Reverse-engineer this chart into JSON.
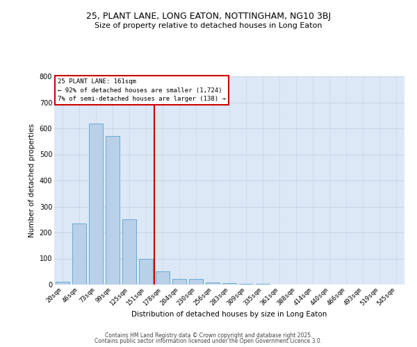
{
  "title1": "25, PLANT LANE, LONG EATON, NOTTINGHAM, NG10 3BJ",
  "title2": "Size of property relative to detached houses in Long Eaton",
  "xlabel": "Distribution of detached houses by size in Long Eaton",
  "ylabel": "Number of detached properties",
  "bar_labels": [
    "20sqm",
    "46sqm",
    "73sqm",
    "99sqm",
    "125sqm",
    "151sqm",
    "178sqm",
    "204sqm",
    "230sqm",
    "256sqm",
    "283sqm",
    "309sqm",
    "335sqm",
    "361sqm",
    "388sqm",
    "414sqm",
    "440sqm",
    "466sqm",
    "493sqm",
    "519sqm",
    "545sqm"
  ],
  "bar_values": [
    10,
    235,
    620,
    570,
    250,
    100,
    50,
    22,
    22,
    8,
    5,
    2,
    2,
    0,
    0,
    0,
    0,
    0,
    0,
    0,
    0
  ],
  "bar_color": "#b8d0e8",
  "bar_edge_color": "#6aaad4",
  "grid_color": "#c8d4e8",
  "background_color": "#dce8f5",
  "vline_color": "#cc0000",
  "annotation_title": "25 PLANT LANE: 161sqm",
  "annotation_line1": "← 92% of detached houses are smaller (1,724)",
  "annotation_line2": "7% of semi-detached houses are larger (138) →",
  "annotation_box_color": "#ffffff",
  "annotation_box_edge": "#cc0000",
  "ylim": [
    0,
    800
  ],
  "yticks": [
    0,
    100,
    200,
    300,
    400,
    500,
    600,
    700,
    800
  ],
  "footer1": "Contains HM Land Registry data © Crown copyright and database right 2025.",
  "footer2": "Contains public sector information licensed under the Open Government Licence 3.0."
}
